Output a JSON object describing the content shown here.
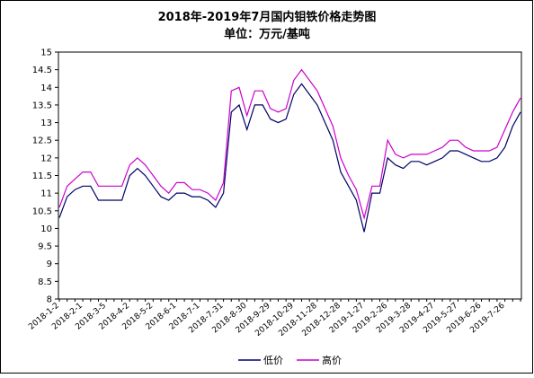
{
  "chart_data": {
    "type": "line",
    "title": "2018年-2019年7月国内钼铁价格走势图",
    "subtitle": "单位：万元/基吨",
    "categories": [
      "2018-1-2",
      null,
      null,
      "2018-2-1",
      null,
      null,
      "2018-3-5",
      null,
      null,
      "2018-4-2",
      null,
      null,
      "2018-5-2",
      null,
      null,
      "2018-6-1",
      null,
      null,
      "2018-7-1",
      null,
      null,
      "2018-7-31",
      null,
      null,
      "2018-8-30",
      null,
      null,
      "2018-9-29",
      null,
      null,
      "2018-10-29",
      null,
      null,
      "2018-11-28",
      null,
      null,
      "2018-12-28",
      null,
      null,
      "2019-1-27",
      null,
      null,
      "2019-2-26",
      null,
      null,
      "2019-3-28",
      null,
      null,
      "2019-4-27",
      null,
      null,
      "2019-5-27",
      null,
      null,
      "2019-6-26",
      null,
      null,
      "2019-7-26",
      null,
      null
    ],
    "series": [
      {
        "name": "低价",
        "color": "#000066",
        "values": [
          10.3,
          10.9,
          11.1,
          11.2,
          11.2,
          10.8,
          10.8,
          10.8,
          10.8,
          11.5,
          11.7,
          11.5,
          11.2,
          10.9,
          10.8,
          11.0,
          11.0,
          10.9,
          10.9,
          10.8,
          10.6,
          11.0,
          13.3,
          13.5,
          12.8,
          13.5,
          13.5,
          13.1,
          13.0,
          13.1,
          13.8,
          14.1,
          13.8,
          13.5,
          13.0,
          12.5,
          11.6,
          11.2,
          10.8,
          9.9,
          11.0,
          11.0,
          12.0,
          11.8,
          11.7,
          11.9,
          11.9,
          11.8,
          11.9,
          12.0,
          12.2,
          12.2,
          12.1,
          12.0,
          11.9,
          11.9,
          12.0,
          12.3,
          12.9,
          13.3
        ]
      },
      {
        "name": "高价",
        "color": "#cc00cc",
        "values": [
          10.6,
          11.2,
          11.4,
          11.6,
          11.6,
          11.2,
          11.2,
          11.2,
          11.2,
          11.8,
          12.0,
          11.8,
          11.5,
          11.2,
          11.0,
          11.3,
          11.3,
          11.1,
          11.1,
          11.0,
          10.8,
          11.3,
          13.9,
          14.0,
          13.2,
          13.9,
          13.9,
          13.4,
          13.3,
          13.4,
          14.2,
          14.5,
          14.2,
          13.9,
          13.4,
          12.9,
          12.0,
          11.5,
          11.1,
          10.3,
          11.2,
          11.2,
          12.5,
          12.1,
          12.0,
          12.1,
          12.1,
          12.1,
          12.2,
          12.3,
          12.5,
          12.5,
          12.3,
          12.2,
          12.2,
          12.2,
          12.3,
          12.8,
          13.3,
          13.7
        ]
      }
    ],
    "ylim": [
      8,
      15
    ],
    "yticks": [
      8,
      8.5,
      9,
      9.5,
      10,
      10.5,
      11,
      11.5,
      12,
      12.5,
      13,
      13.5,
      14,
      14.5,
      15
    ]
  }
}
